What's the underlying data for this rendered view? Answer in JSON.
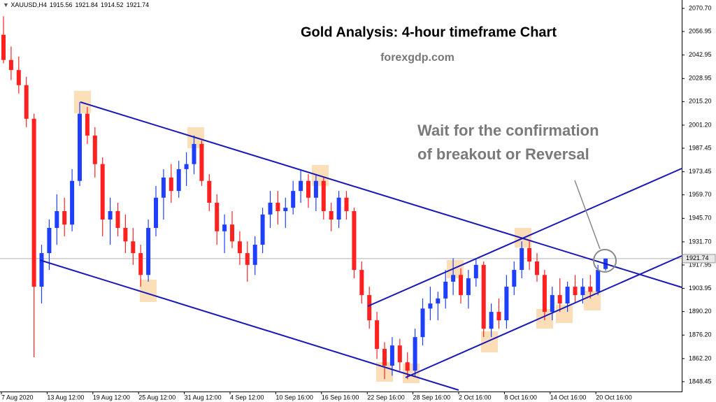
{
  "chart_data": {
    "type": "candlestick",
    "symbol": "XAUUSD,H4",
    "title": "Gold Analysis: 4-hour timeframe Chart",
    "subtitle": "forexgdp.com",
    "annotation": [
      "Wait for the confirmation",
      "of breakout or Reversal"
    ],
    "up_color": "#1f3fff",
    "down_color": "#ff2020",
    "last_price": 1921.74,
    "categories": [
      "7 Aug 2020",
      null,
      null,
      null,
      null,
      null,
      "13 Aug 12:00",
      null,
      null,
      null,
      null,
      null,
      "19 Aug 12:00",
      null,
      null,
      null,
      null,
      null,
      "25 Aug 12:00",
      null,
      null,
      null,
      null,
      null,
      "31 Aug 12:00",
      null,
      null,
      null,
      null,
      null,
      "4 Sep 12:00",
      null,
      null,
      null,
      null,
      null,
      "10 Sep 16:00",
      null,
      null,
      null,
      null,
      null,
      "16 Sep 16:00",
      null,
      null,
      null,
      null,
      null,
      "22 Sep 16:00",
      null,
      null,
      null,
      null,
      null,
      "28 Sep 16:00",
      null,
      null,
      null,
      null,
      null,
      "2 Oct 16:00",
      null,
      null,
      null,
      null,
      null,
      "8 Oct 16:00",
      null,
      null,
      null,
      null,
      null,
      "14 Oct 16:00",
      null,
      null,
      null,
      null,
      null,
      "20 Oct 16:00",
      null
    ],
    "open": [
      2055,
      2040,
      2034,
      2025,
      2005,
      1905,
      1925,
      1940,
      1950,
      1942,
      1968,
      2008,
      1995,
      1978,
      1945,
      1950,
      1940,
      1932,
      1925,
      1912,
      1940,
      1958,
      1970,
      1962,
      1975,
      1978,
      1990,
      1968,
      1955,
      1938,
      1942,
      1932,
      1925,
      1918,
      1930,
      1948,
      1955,
      1950,
      1952,
      1962,
      1968,
      1958,
      1968,
      1950,
      1945,
      1958,
      1950,
      1915,
      1900,
      1885,
      1868,
      1858,
      1870,
      1860,
      1855,
      1875,
      1892,
      1895,
      1898,
      1908,
      1912,
      1900,
      1910,
      1918,
      1880,
      1890,
      1885,
      1905,
      1915,
      1928,
      1920,
      1912,
      1890,
      1900,
      1895,
      1905,
      1900,
      1905,
      1902,
      1915.56
    ],
    "high": [
      2066,
      2048,
      2042,
      2030,
      2008,
      1930,
      1945,
      1960,
      1958,
      1975,
      2015,
      2012,
      2000,
      1982,
      1958,
      1955,
      1948,
      1940,
      1930,
      1945,
      1965,
      1975,
      1978,
      1980,
      1985,
      1995,
      1992,
      1972,
      1960,
      1948,
      1950,
      1938,
      1932,
      1935,
      1952,
      1962,
      1962,
      1958,
      1968,
      1975,
      1972,
      1972,
      1970,
      1955,
      1962,
      1962,
      1952,
      1920,
      1905,
      1890,
      1872,
      1875,
      1874,
      1866,
      1880,
      1898,
      1905,
      1902,
      1915,
      1922,
      1916,
      1915,
      1922,
      1920,
      1895,
      1898,
      1912,
      1920,
      1932,
      1932,
      1925,
      1915,
      1905,
      1910,
      1908,
      1912,
      1910,
      1912,
      1918,
      1921.84
    ],
    "low": [
      2038,
      2028,
      2020,
      2000,
      1863,
      1895,
      1915,
      1930,
      1935,
      1938,
      1965,
      1990,
      1970,
      1935,
      1930,
      1935,
      1925,
      1918,
      1905,
      1908,
      1935,
      1945,
      1955,
      1958,
      1965,
      1972,
      1965,
      1950,
      1930,
      1925,
      1928,
      1918,
      1908,
      1912,
      1925,
      1940,
      1942,
      1940,
      1948,
      1955,
      1952,
      1950,
      1945,
      1938,
      1940,
      1945,
      1910,
      1895,
      1880,
      1862,
      1850,
      1852,
      1855,
      1850,
      1852,
      1870,
      1885,
      1885,
      1892,
      1900,
      1895,
      1892,
      1905,
      1875,
      1875,
      1880,
      1880,
      1900,
      1910,
      1915,
      1908,
      1885,
      1885,
      1890,
      1890,
      1895,
      1895,
      1898,
      1900,
      1914.52
    ],
    "close": [
      2040,
      2034,
      2025,
      2005,
      1905,
      1925,
      1940,
      1950,
      1942,
      1968,
      2008,
      1995,
      1978,
      1945,
      1950,
      1940,
      1932,
      1925,
      1912,
      1940,
      1958,
      1970,
      1962,
      1975,
      1978,
      1990,
      1968,
      1955,
      1938,
      1942,
      1932,
      1925,
      1918,
      1930,
      1948,
      1955,
      1950,
      1952,
      1962,
      1968,
      1958,
      1968,
      1950,
      1945,
      1958,
      1950,
      1915,
      1900,
      1885,
      1868,
      1858,
      1870,
      1860,
      1855,
      1875,
      1892,
      1895,
      1898,
      1908,
      1912,
      1900,
      1910,
      1918,
      1880,
      1890,
      1885,
      1905,
      1915,
      1928,
      1920,
      1912,
      1890,
      1900,
      1895,
      1905,
      1900,
      1905,
      1902,
      1915,
      1921.74
    ],
    "ylim": [
      1842.6,
      2075.7
    ],
    "yticks": [
      {
        "value": 2070.7,
        "label": "2070.70"
      },
      2056.95,
      2042.95,
      2028.95,
      {
        "value": 2015.2,
        "label": "2015.20"
      },
      {
        "value": 2001.2,
        "label": "2001.20"
      },
      1987.45,
      1973.45,
      {
        "value": 1959.7,
        "label": "1959.70"
      },
      {
        "value": 1945.7,
        "label": "1945.70"
      },
      {
        "value": 1931.7,
        "label": "1931.70"
      },
      1917.95,
      1903.95,
      {
        "value": 1890.2,
        "label": "1890.20"
      },
      {
        "value": 1876.2,
        "label": "1876.20"
      },
      {
        "value": 1862.2,
        "label": "1862.20"
      },
      1848.45
    ]
  }
}
